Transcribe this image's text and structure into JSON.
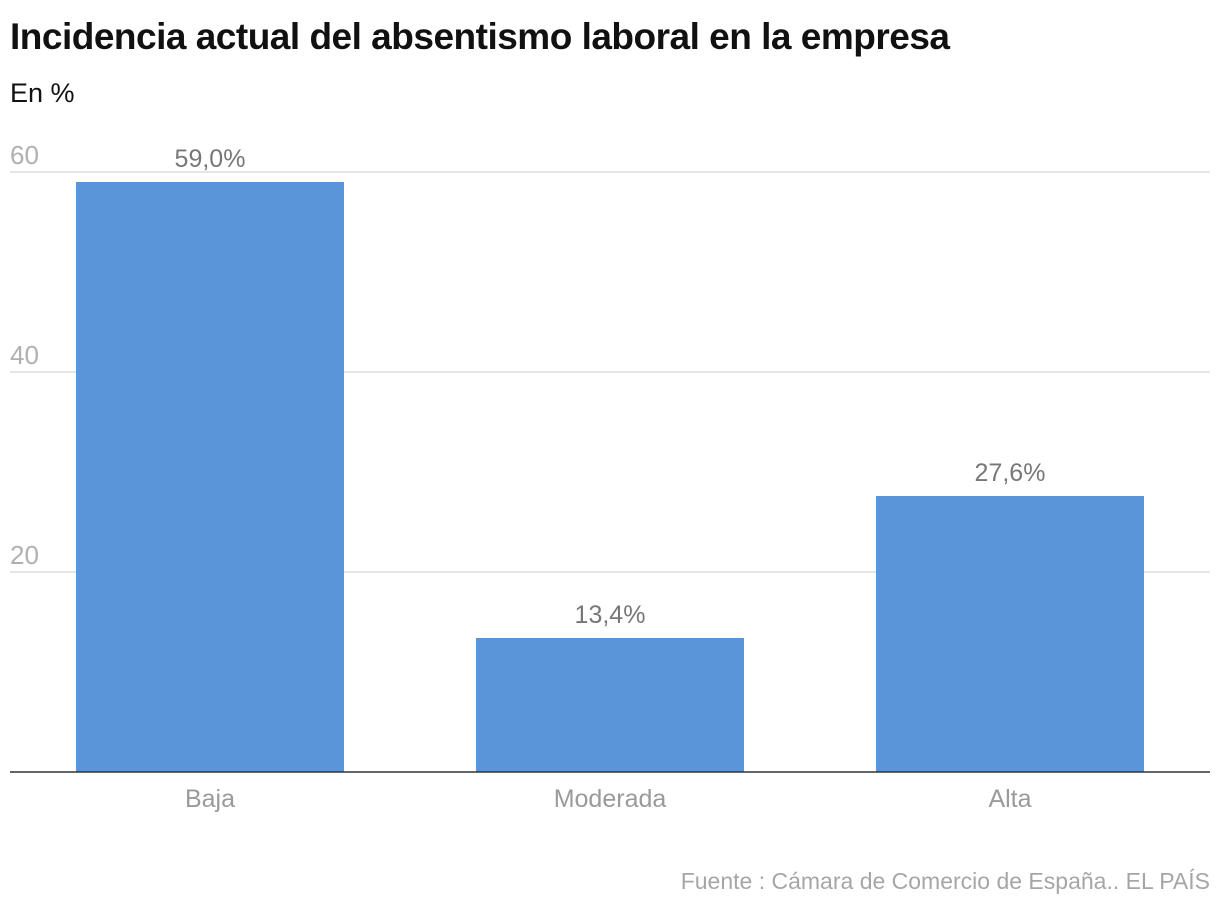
{
  "chart_data": {
    "type": "bar",
    "title": "Incidencia actual del absentismo laboral en la empresa",
    "subtitle": "En %",
    "categories": [
      "Baja",
      "Moderada",
      "Alta"
    ],
    "values": [
      59.0,
      13.4,
      27.6
    ],
    "data_labels": [
      "59,0%",
      "13,4%",
      "27,6%"
    ],
    "ylim": [
      0,
      60
    ],
    "yticks": [
      20,
      40,
      60
    ],
    "ytick_labels": [
      "20",
      "40",
      "60"
    ],
    "grid": true,
    "bar_color": "#5b95d9",
    "source": "Fuente : Cámara de Comercio de España.. EL PAÍS"
  }
}
